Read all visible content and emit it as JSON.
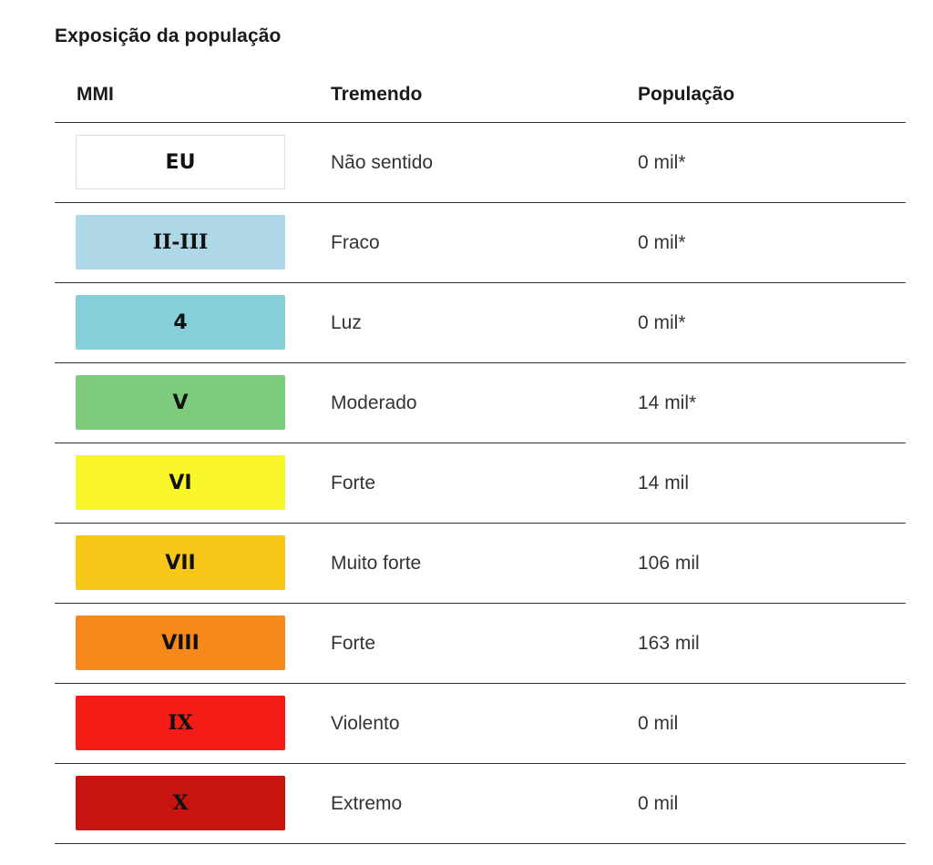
{
  "title": "Exposição da população",
  "columns": {
    "mmi": "MMI",
    "shaking": "Tremendo",
    "population": "População"
  },
  "rows": [
    {
      "mmi": "EU",
      "shaking": "Não sentido",
      "population": "0 mil*",
      "color": "#ffffff"
    },
    {
      "mmi": "II-III",
      "shaking": "Fraco",
      "population": "0 mil*",
      "color": "#aed7e8"
    },
    {
      "mmi": "4",
      "shaking": "Luz",
      "population": "0 mil*",
      "color": "#86cfd9"
    },
    {
      "mmi": "V",
      "shaking": "Moderado",
      "population": "14 mil*",
      "color": "#7ecb7e"
    },
    {
      "mmi": "VI",
      "shaking": "Forte",
      "population": "14 mil",
      "color": "#f8f528"
    },
    {
      "mmi": "VII",
      "shaking": "Muito forte",
      "population": "106 mil",
      "color": "#f9c61a"
    },
    {
      "mmi": "VIII",
      "shaking": "Forte",
      "population": "163 mil",
      "color": "#f7891c"
    },
    {
      "mmi": "IX",
      "shaking": "Violento",
      "population": "0 mil",
      "color": "#f41c14"
    },
    {
      "mmi": "X",
      "shaking": "Extremo",
      "population": "0 mil",
      "color": "#c8140f"
    }
  ]
}
